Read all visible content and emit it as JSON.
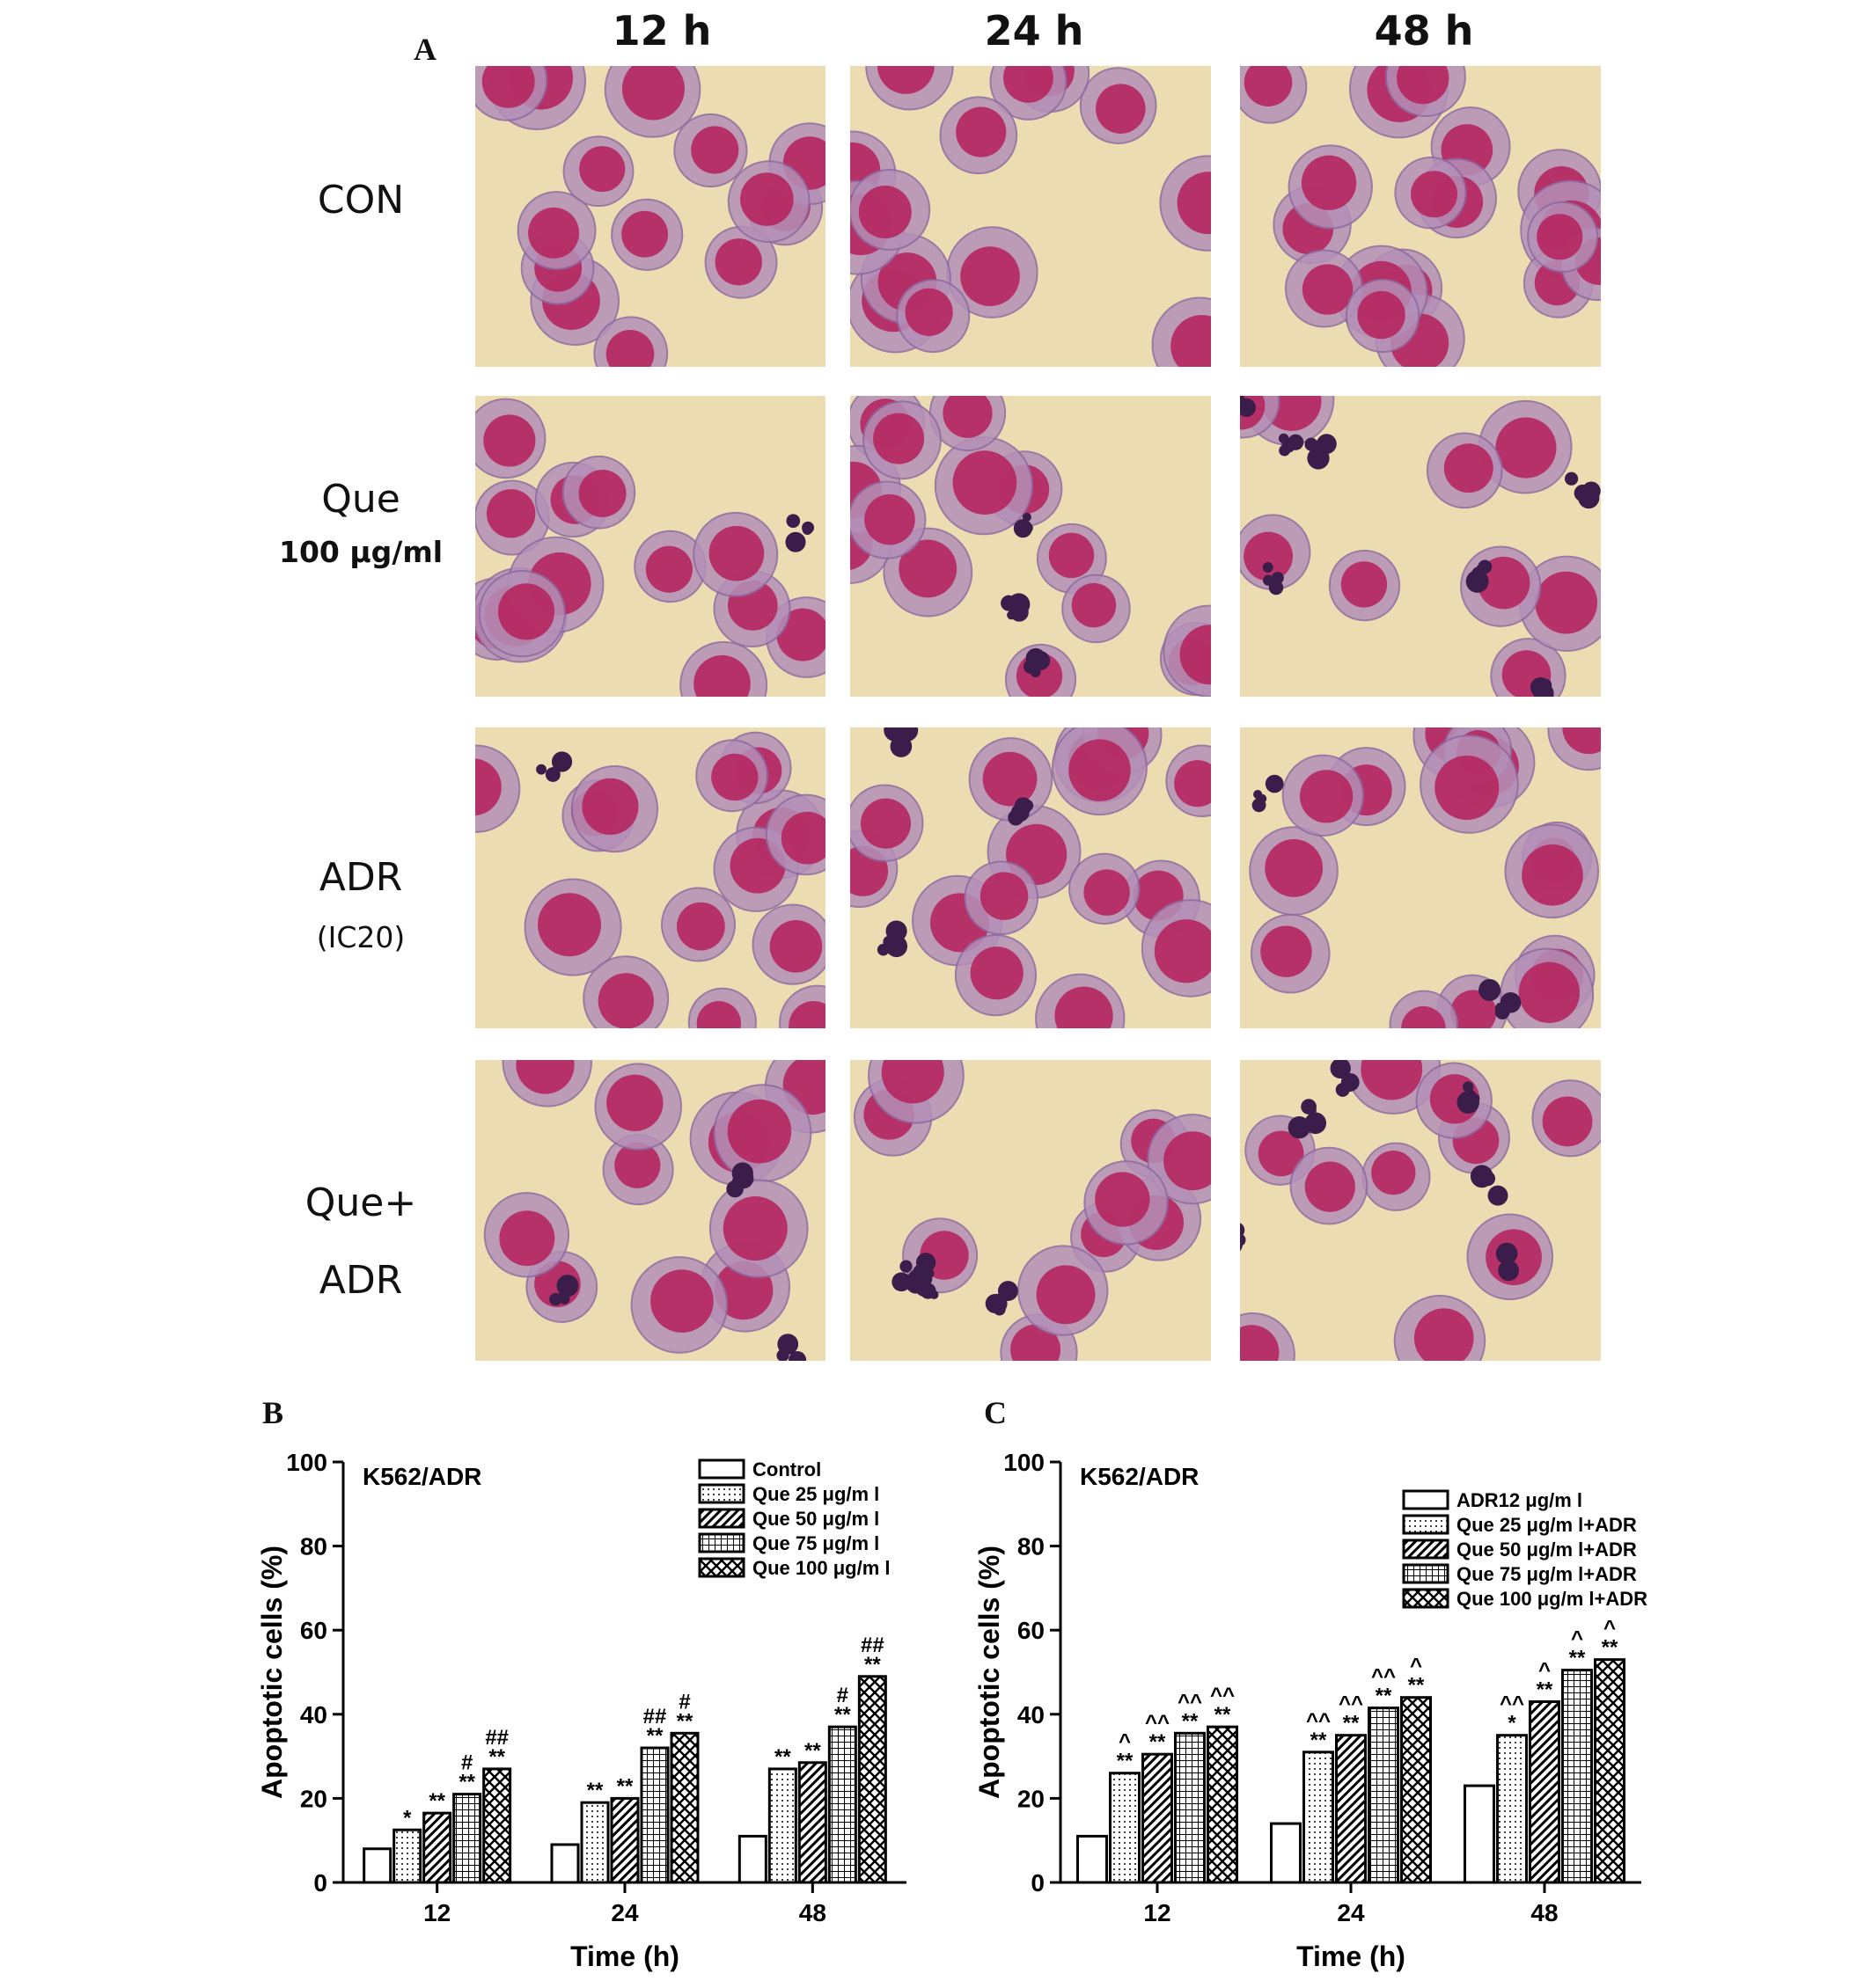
{
  "panel_a": {
    "letter": "A",
    "columns": [
      "12 h",
      "24 h",
      "48 h"
    ],
    "rows": [
      {
        "label": "CON",
        "sub": ""
      },
      {
        "label": "Que",
        "sub": "100 μg/ml"
      },
      {
        "label": "ADR",
        "sub": "(IC20)"
      },
      {
        "label": "Que+",
        "sub": "ADR"
      }
    ],
    "colors": {
      "background": "#ebdcb2",
      "cell": "#b490b8",
      "nucleus": "#b5285f",
      "apoptotic": "#3a1d4a"
    }
  },
  "chart_data": [
    {
      "panel": "B",
      "type": "bar",
      "cell_line": "K562/ADR",
      "xlabel": "Time (h)",
      "ylabel": "Apoptotic cells (%)",
      "ylim": [
        0,
        100
      ],
      "yticks": [
        "0",
        "20",
        "40",
        "60",
        "80",
        "100"
      ],
      "categories": [
        "12",
        "24",
        "48"
      ],
      "series": [
        {
          "name": "Control",
          "pattern": "blank",
          "values": [
            8,
            9,
            11
          ],
          "labels": [
            "",
            "",
            ""
          ]
        },
        {
          "name": "Que 25 μg/m l",
          "pattern": "dots",
          "values": [
            12.5,
            19,
            27
          ],
          "labels": [
            "*",
            "**",
            "**"
          ]
        },
        {
          "name": "Que 50 μg/m l",
          "pattern": "diagonal",
          "values": [
            16.5,
            20,
            28.5
          ],
          "labels": [
            "**",
            "**",
            "**"
          ]
        },
        {
          "name": "Que 75 μg/m l",
          "pattern": "grid",
          "values": [
            21,
            32,
            37
          ],
          "labels": [
            "#\n**",
            "##\n**",
            "#\n**"
          ]
        },
        {
          "name": "Que 100 μg/m l",
          "pattern": "crosshatch",
          "values": [
            27,
            35.5,
            49
          ],
          "labels": [
            "##\n**",
            "#\n**",
            "##\n**"
          ]
        }
      ]
    },
    {
      "panel": "C",
      "type": "bar",
      "cell_line": "K562/ADR",
      "xlabel": "Time (h)",
      "ylabel": "Apoptotic cells (%)",
      "ylim": [
        0,
        100
      ],
      "yticks": [
        "0",
        "20",
        "40",
        "60",
        "80",
        "100"
      ],
      "categories": [
        "12",
        "24",
        "48"
      ],
      "series": [
        {
          "name": "ADR12 μg/m l",
          "pattern": "blank",
          "values": [
            11,
            14,
            23
          ],
          "labels": [
            "",
            "",
            ""
          ]
        },
        {
          "name": "Que 25 μg/m l+ADR",
          "pattern": "dots",
          "values": [
            26,
            31,
            35
          ],
          "labels": [
            "^\n**",
            "^^\n**",
            "^^\n*"
          ]
        },
        {
          "name": "Que 50 μg/m l+ADR",
          "pattern": "diagonal",
          "values": [
            30.5,
            35,
            43
          ],
          "labels": [
            "^^\n**",
            "^^\n**",
            "^\n**"
          ]
        },
        {
          "name": "Que 75 μg/m l+ADR",
          "pattern": "grid",
          "values": [
            35.5,
            41.5,
            50.5
          ],
          "labels": [
            "^^\n**",
            "^^\n**",
            "^\n**"
          ]
        },
        {
          "name": "Que 100 μg/m l+ADR",
          "pattern": "crosshatch",
          "values": [
            37,
            44,
            53
          ],
          "labels": [
            "^^\n**",
            "^\n**",
            "^\n**"
          ]
        }
      ]
    }
  ]
}
